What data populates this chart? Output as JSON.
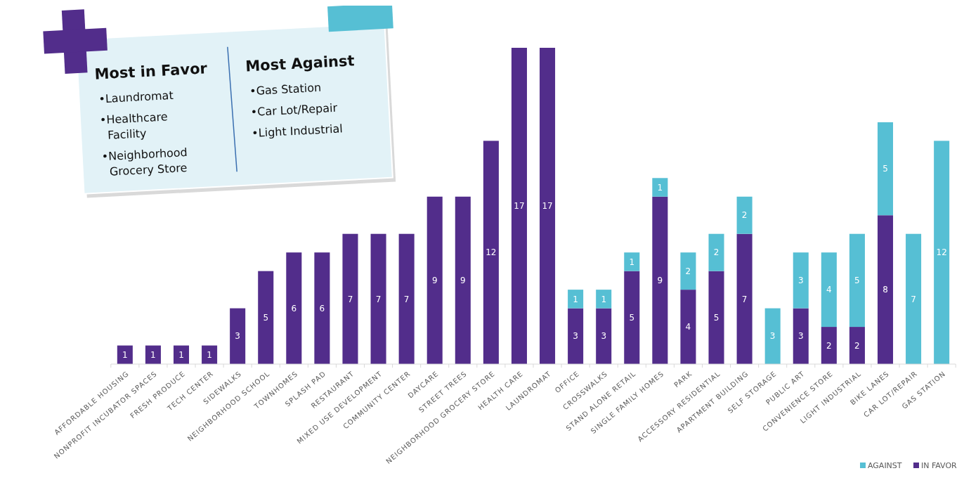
{
  "chart_data": {
    "type": "bar",
    "stacked": true,
    "data_labels": true,
    "legend": "bottom right",
    "categories": [
      "AFFORDABLE HOUSING",
      "NONPROFIT INCUBATOR SPACES",
      "FRESH PRODUCE",
      "TECH CENTER",
      "SIDEWALKS",
      "NEIGHBORHOOD SCHOOL",
      "TOWNHOMES",
      "SPLASH PAD",
      "RESTAURANT",
      "MIXED USE DEVELOPMENT",
      "COMMUNITY CENTER",
      "DAYCARE",
      "STREET TREES",
      "NEIGHBORHOOD GROCERY STORE",
      "HEALTH CARE",
      "LAUNDROMAT",
      "OFFICE",
      "CROSSWALKS",
      "STAND ALONE RETAIL",
      "SINGLE FAMILY HOMES",
      "PARK",
      "ACCESSORY RESIDENTIAL",
      "APARTMENT BUILDING",
      "SELF STORAGE",
      "PUBLIC ART",
      "CONVENIENCE STORE",
      "LIGHT INDUSTRIAL",
      "BIKE LANES",
      "CAR LOT/REPAIR",
      "GAS STATION"
    ],
    "series": [
      {
        "name": "IN FAVOR",
        "color": "#522d8b",
        "values": [
          1,
          1,
          1,
          1,
          3,
          5,
          6,
          6,
          7,
          7,
          7,
          9,
          9,
          12,
          17,
          17,
          3,
          3,
          5,
          9,
          4,
          5,
          7,
          null,
          3,
          2,
          2,
          8,
          null,
          null
        ]
      },
      {
        "name": "AGAINST",
        "color": "#56bfd4",
        "values": [
          null,
          null,
          null,
          null,
          null,
          null,
          null,
          null,
          null,
          null,
          null,
          null,
          null,
          null,
          null,
          null,
          1,
          1,
          1,
          1,
          2,
          2,
          2,
          3,
          3,
          4,
          5,
          5,
          7,
          12
        ]
      }
    ],
    "annotations": [
      "Most in Favor",
      "•Laundromat",
      "•Healthcare Facility",
      "•Neighborhood Grocery Store",
      "Most Against",
      "•Gas Station",
      "•Car Lot/Repair",
      "•Light Industrial"
    ]
  }
}
